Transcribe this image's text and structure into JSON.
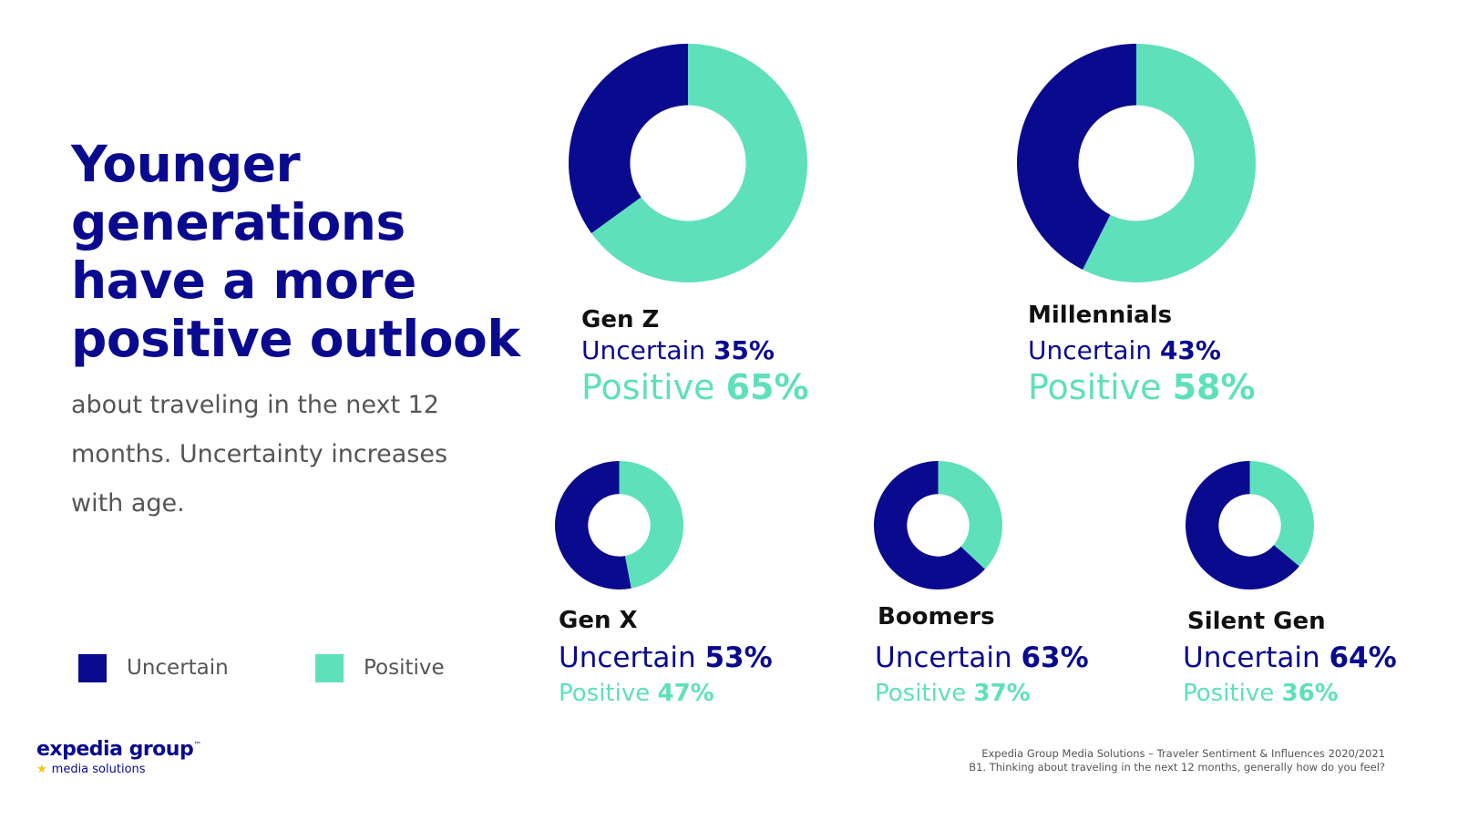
{
  "headline": "Younger generations have a more positive outlook",
  "subtext": "about traveling in the next 12 months. Uncertainty increases with age.",
  "legend": {
    "uncertain_label": "Uncertain",
    "positive_label": "Positive",
    "uncertain_color": "#0a0a8f",
    "positive_color": "#5ee0bb"
  },
  "logo": {
    "main": "expedia group",
    "tm": "™",
    "sub": "media solutions"
  },
  "source": {
    "line1": "Expedia Group Media Solutions – Traveler Sentiment & Influences 2020/2021",
    "line2": "B1. Thinking about traveling in the next 12 months, generally how do you feel?"
  },
  "chart_data": [
    {
      "type": "pie",
      "name": "Gen Z",
      "uncertain_label": "Uncertain",
      "positive_label": "Positive",
      "uncertain_text": "35%",
      "positive_text": "65%",
      "uncertain": 35,
      "positive": 65
    },
    {
      "type": "pie",
      "name": "Millennials",
      "uncertain_label": "Uncertain",
      "positive_label": "Positive",
      "uncertain_text": "43%",
      "positive_text": "58%",
      "uncertain": 43,
      "positive": 58
    },
    {
      "type": "pie",
      "name": "Gen X",
      "uncertain_label": "Uncertain",
      "positive_label": "Positive",
      "uncertain_text": "53%",
      "positive_text": "47%",
      "uncertain": 53,
      "positive": 47
    },
    {
      "type": "pie",
      "name": "Boomers",
      "uncertain_label": "Uncertain",
      "positive_label": "Positive",
      "uncertain_text": "63%",
      "positive_text": "37%",
      "uncertain": 63,
      "positive": 37
    },
    {
      "type": "pie",
      "name": "Silent Gen",
      "uncertain_label": "Uncertain",
      "positive_label": "Positive",
      "uncertain_text": "64%",
      "positive_text": "36%",
      "uncertain": 64,
      "positive": 36
    }
  ]
}
